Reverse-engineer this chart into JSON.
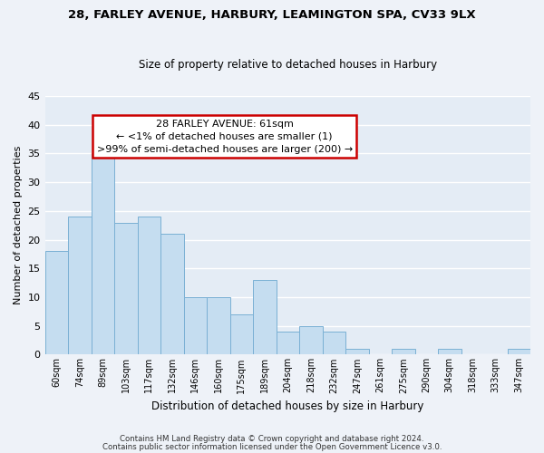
{
  "title_line1": "28, FARLEY AVENUE, HARBURY, LEAMINGTON SPA, CV33 9LX",
  "title_line2": "Size of property relative to detached houses in Harbury",
  "xlabel": "Distribution of detached houses by size in Harbury",
  "ylabel": "Number of detached properties",
  "bar_color": "#c5ddf0",
  "bar_edge_color": "#7ab0d4",
  "categories": [
    "60sqm",
    "74sqm",
    "89sqm",
    "103sqm",
    "117sqm",
    "132sqm",
    "146sqm",
    "160sqm",
    "175sqm",
    "189sqm",
    "204sqm",
    "218sqm",
    "232sqm",
    "247sqm",
    "261sqm",
    "275sqm",
    "290sqm",
    "304sqm",
    "318sqm",
    "333sqm",
    "347sqm"
  ],
  "values": [
    18,
    24,
    35,
    23,
    24,
    21,
    10,
    10,
    7,
    13,
    4,
    5,
    4,
    1,
    0,
    1,
    0,
    1,
    0,
    0,
    1
  ],
  "ylim": [
    0,
    45
  ],
  "yticks": [
    0,
    5,
    10,
    15,
    20,
    25,
    30,
    35,
    40,
    45
  ],
  "ann_line1": "28 FARLEY AVENUE: 61sqm",
  "ann_line2": "← <1% of detached houses are smaller (1)",
  "ann_line3": ">99% of semi-detached houses are larger (200) →",
  "footer_line1": "Contains HM Land Registry data © Crown copyright and database right 2024.",
  "footer_line2": "Contains public sector information licensed under the Open Government Licence v3.0.",
  "background_color": "#eef2f8",
  "plot_background": "#e4ecf5",
  "grid_color": "#ffffff",
  "annotation_border_color": "#cc0000",
  "title1_fontsize": 9.5,
  "title2_fontsize": 8.5,
  "ylabel_fontsize": 8,
  "xlabel_fontsize": 8.5,
  "ann_fontsize": 8,
  "tick_fontsize": 7
}
